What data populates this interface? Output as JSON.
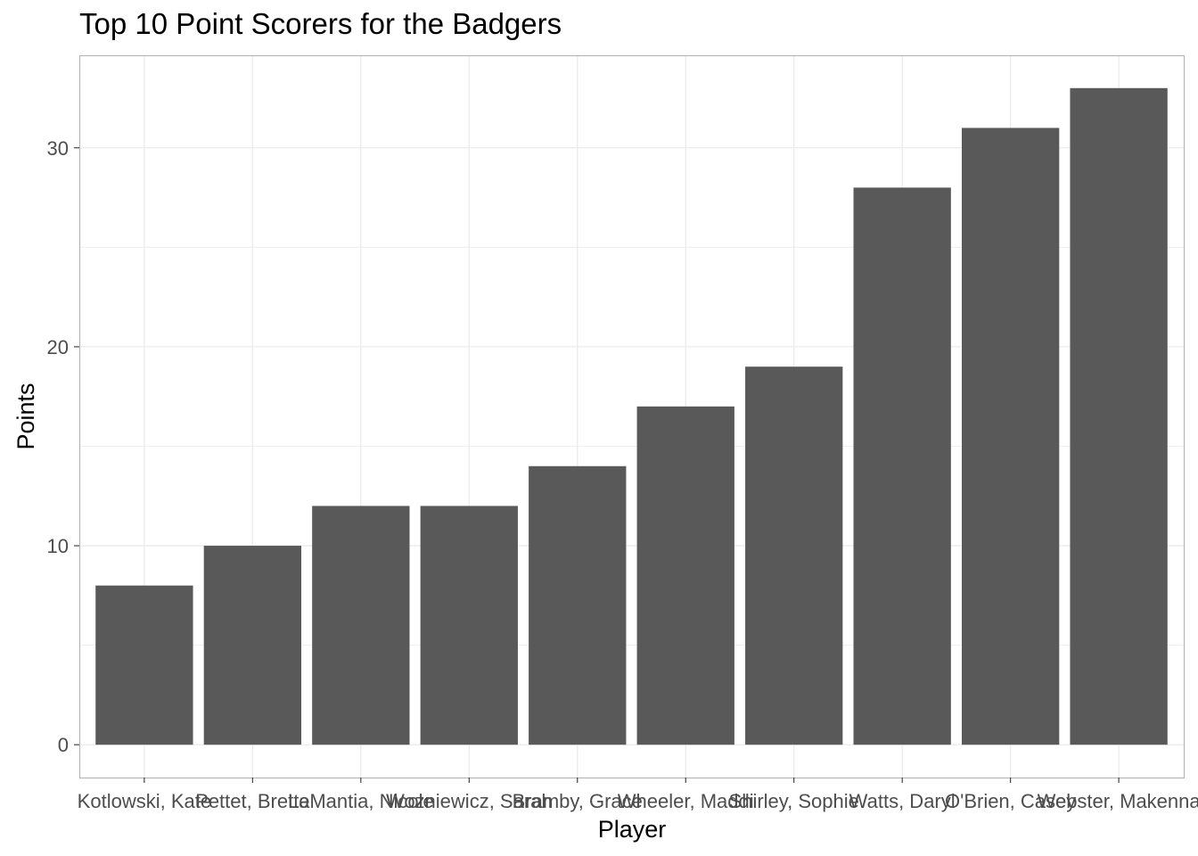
{
  "chart_data": {
    "type": "bar",
    "title": "Top 10 Point Scorers for the Badgers",
    "xlabel": "Player",
    "ylabel": "Points",
    "categories": [
      "Kotlowski, Kate",
      "Pettet, Brette",
      "LaMantia, Nicole",
      "Wozniewicz, Sarah",
      "Bramby, Grace",
      "Wheeler, Maddi",
      "Shirley, Sophie",
      "Watts, Daryl",
      "O'Brien, Casey",
      "Webster, Makenna"
    ],
    "values": [
      8,
      10,
      12,
      12,
      14,
      17,
      19,
      28,
      31,
      33
    ],
    "ylim": [
      -1.65,
      34.65
    ],
    "yticks": [
      0,
      10,
      20,
      30
    ],
    "grid": true,
    "legend": "none",
    "bar_color": "#595959",
    "grid_color": "#ebebeb",
    "panel_border_color": "#b3b3b3"
  }
}
